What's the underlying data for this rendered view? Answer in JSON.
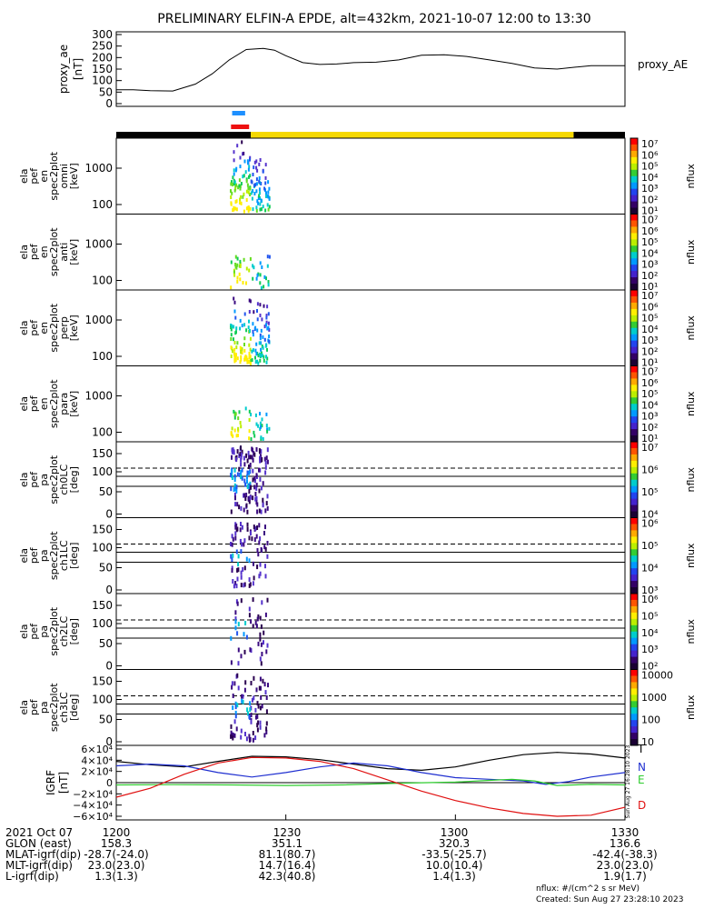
{
  "title": "PRELIMINARY ELFIN-A EPDE, alt=432km, 2021-10-07 12:00 to 13:30",
  "proxy_panel": {
    "ylabel_lines": [
      "proxy_ae",
      "[nT]"
    ],
    "yticks": [
      0,
      50,
      100,
      150,
      200,
      250,
      300
    ],
    "ylim": [
      0,
      300
    ],
    "series_label": "proxy_AE",
    "series": {
      "x_min": [
        0,
        3,
        6,
        10,
        14,
        17,
        20,
        23,
        26,
        28,
        30,
        33,
        36,
        39,
        42,
        46,
        50,
        54,
        58,
        62,
        66,
        70,
        74,
        78,
        81,
        84,
        87,
        90
      ],
      "values": [
        60,
        60,
        56,
        55,
        85,
        130,
        190,
        235,
        240,
        232,
        208,
        178,
        170,
        172,
        178,
        180,
        190,
        210,
        212,
        205,
        190,
        175,
        155,
        150,
        158,
        165,
        165,
        165
      ]
    }
  },
  "bars": {
    "row1_blue": [
      {
        "from": 20.5,
        "to": 22.8
      }
    ],
    "row2_red": [
      {
        "from": 20.3,
        "to": 23.5
      }
    ],
    "status_black": [
      {
        "from": 0,
        "to": 23.8
      },
      {
        "from": 80.9,
        "to": 90
      }
    ],
    "status_yellow": [
      {
        "from": 23.8,
        "to": 80.9
      }
    ]
  },
  "spec_panels": [
    {
      "label_lines": [
        "ela",
        "pef",
        "en",
        "spec2plot",
        "omni",
        "[keV]"
      ],
      "yticks": [
        "1000",
        "100"
      ],
      "type": "energy",
      "density": "high"
    },
    {
      "label_lines": [
        "ela",
        "pef",
        "en",
        "spec2plot",
        "anti",
        "[keV]"
      ],
      "yticks": [
        "1000",
        "100"
      ],
      "type": "energy",
      "density": "low"
    },
    {
      "label_lines": [
        "ela",
        "pef",
        "en",
        "spec2plot",
        "perp",
        "[keV]"
      ],
      "yticks": [
        "1000",
        "100"
      ],
      "type": "energy",
      "density": "high"
    },
    {
      "label_lines": [
        "ela",
        "pef",
        "en",
        "spec2plot",
        "para",
        "[keV]"
      ],
      "yticks": [
        "1000",
        "100"
      ],
      "type": "energy",
      "density": "low"
    },
    {
      "label_lines": [
        "ela",
        "pef",
        "pa",
        "spec2plot",
        "ch0LC",
        "[deg]"
      ],
      "yticks": [
        "150",
        "100",
        "50",
        "0"
      ],
      "type": "pa",
      "density": "high"
    },
    {
      "label_lines": [
        "ela",
        "pef",
        "pa",
        "spec2plot",
        "ch1LC",
        "[deg]"
      ],
      "yticks": [
        "150",
        "100",
        "50",
        "0"
      ],
      "type": "pa",
      "density": "mid"
    },
    {
      "label_lines": [
        "ela",
        "pef",
        "pa",
        "spec2plot",
        "ch2LC",
        "[deg]"
      ],
      "yticks": [
        "150",
        "100",
        "50",
        "0"
      ],
      "type": "pa",
      "density": "low"
    },
    {
      "label_lines": [
        "ela",
        "pef",
        "pa",
        "spec2plot",
        "ch3LC",
        "[deg]"
      ],
      "yticks": [
        "150",
        "100",
        "50",
        "0"
      ],
      "type": "pa",
      "density": "mid"
    }
  ],
  "colorbars": [
    {
      "labels": [
        "10⁷",
        "10⁶",
        "10⁵",
        "10⁴",
        "10³",
        "10²",
        "10¹"
      ],
      "unit": "nflux"
    },
    {
      "labels": [
        "10⁷",
        "10⁶",
        "10⁵",
        "10⁴",
        "10³",
        "10²",
        "10¹"
      ],
      "unit": "nflux"
    },
    {
      "labels": [
        "10⁷",
        "10⁶",
        "10⁵",
        "10⁴",
        "10³",
        "10²",
        "10¹"
      ],
      "unit": "nflux"
    },
    {
      "labels": [
        "10⁷",
        "10⁶",
        "10⁵",
        "10⁴",
        "10³",
        "10²",
        "10¹"
      ],
      "unit": "nflux"
    },
    {
      "labels": [
        "10⁷",
        "10⁶",
        "10⁵",
        "10⁴"
      ],
      "unit": "nflux"
    },
    {
      "labels": [
        "10⁶",
        "10⁵",
        "10⁴",
        "10³"
      ],
      "unit": "nflux"
    },
    {
      "labels": [
        "10⁶",
        "10⁵",
        "10⁴",
        "10³",
        "10²"
      ],
      "unit": "nflux"
    },
    {
      "labels": [
        "10000",
        "1000",
        "100",
        "10"
      ],
      "unit": "nflux"
    }
  ],
  "igrf_panel": {
    "ylabel_lines": [
      "IGRF",
      "[nT]"
    ],
    "yticks": [
      "6×10⁴",
      "4×10⁴",
      "2×10⁴",
      "0",
      "−2×10⁴",
      "−4×10⁴",
      "−6×10⁴"
    ],
    "ylim": [
      -60000,
      60000
    ],
    "legend": [
      {
        "name": "T",
        "color": "#000000"
      },
      {
        "name": "N",
        "color": "#1f2fd0"
      },
      {
        "name": "E",
        "color": "#2ecc2e"
      },
      {
        "name": "D",
        "color": "#e01010"
      }
    ],
    "series": {
      "T": {
        "x": [
          0,
          6,
          12,
          18,
          24,
          30,
          36,
          42,
          48,
          54,
          60,
          66,
          72,
          78,
          84,
          90
        ],
        "y": [
          38000,
          32000,
          28000,
          38000,
          47000,
          46000,
          41000,
          33000,
          25000,
          22000,
          28000,
          40000,
          50000,
          54000,
          51000,
          44000
        ]
      },
      "N": {
        "x": [
          0,
          6,
          12,
          18,
          24,
          30,
          36,
          42,
          48,
          54,
          60,
          66,
          72,
          76,
          80,
          84,
          90
        ],
        "y": [
          30000,
          33000,
          30000,
          18000,
          10000,
          18000,
          28000,
          35000,
          30000,
          18000,
          9000,
          6000,
          3000,
          -3000,
          2000,
          10000,
          18000
        ]
      },
      "E": {
        "x": [
          0,
          10,
          20,
          30,
          40,
          50,
          60,
          66,
          70,
          74,
          78,
          84,
          90
        ],
        "y": [
          -4000,
          -3500,
          -4000,
          -5000,
          -4000,
          -1000,
          1000,
          4000,
          6000,
          3000,
          -5000,
          -3000,
          -4000
        ]
      },
      "D": {
        "x": [
          0,
          6,
          12,
          18,
          24,
          30,
          36,
          42,
          48,
          54,
          60,
          66,
          72,
          78,
          84,
          90
        ],
        "y": [
          -26000,
          -10000,
          15000,
          35000,
          45000,
          44000,
          38000,
          25000,
          5000,
          -15000,
          -32000,
          -45000,
          -55000,
          -60000,
          -58000,
          -44000
        ]
      }
    }
  },
  "xaxis": {
    "ticks": [
      {
        "t": 0,
        "label": "1200"
      },
      {
        "t": 30,
        "label": "1230"
      },
      {
        "t": 60,
        "label": "1300"
      },
      {
        "t": 90,
        "label": "1330"
      }
    ]
  },
  "footer": {
    "rows": [
      {
        "label": "2021 Oct 07",
        "values": [
          "1200",
          "1230",
          "1300",
          "1330"
        ]
      },
      {
        "label": "GLON (east)",
        "values": [
          "158.3",
          "351.1",
          "320.3",
          "136.6"
        ]
      },
      {
        "label": "MLAT-igrf(dip)",
        "values": [
          "-28.7(-24.0)",
          "81.1(80.7)",
          "-33.5(-25.7)",
          "-42.4(-38.3)"
        ]
      },
      {
        "label": "MLT-igrf(dip)",
        "values": [
          "23.0(23.0)",
          "14.7(16.4)",
          "10.0(10.4)",
          "23.0(23.0)"
        ]
      },
      {
        "label": "L-igrf(dip)",
        "values": [
          "1.3(1.3)",
          "42.3(40.8)",
          "1.4(1.3)",
          "1.9(1.7)"
        ]
      }
    ],
    "nflux_note": "nflux: #/(cm^2 s sr MeV)",
    "created": "Created: Sun Aug 27 23:28:10 2023",
    "vertical_stamp": "Sun Aug 27 16:28:10 2023"
  }
}
